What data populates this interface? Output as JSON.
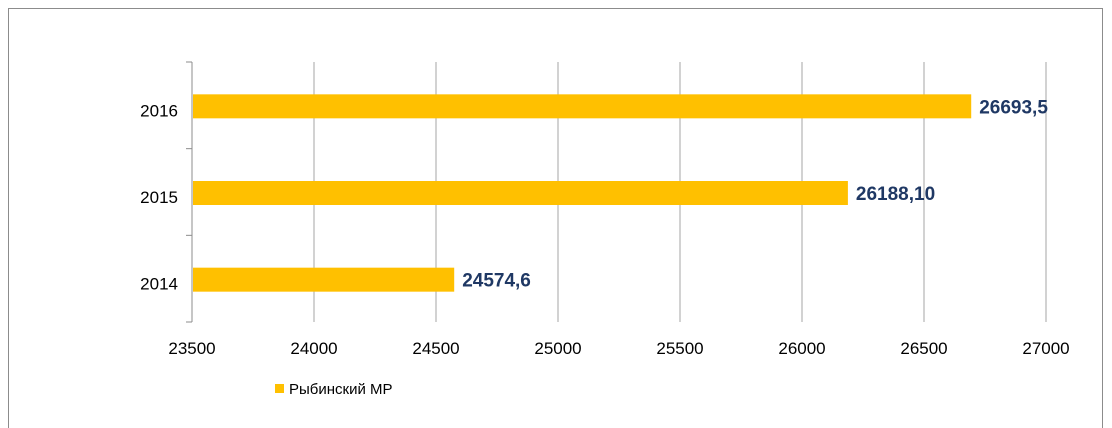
{
  "chart_data": {
    "type": "bar",
    "orientation": "horizontal",
    "categories": [
      "2014",
      "2015",
      "2016"
    ],
    "series": [
      {
        "name": "Рыбинский МР",
        "values": [
          24574.6,
          26188.1,
          26693.5
        ],
        "data_labels": [
          "24574,6",
          "26188,10",
          "26693,5"
        ],
        "color": "#ffc000"
      }
    ],
    "xlim": [
      23500,
      27000
    ],
    "x_ticks": [
      "23500",
      "24000",
      "24500",
      "25000",
      "25500",
      "26000",
      "26500",
      "27000"
    ],
    "grid": "vertical",
    "legend": "bottom-left",
    "label_color": "#1f3864",
    "grid_color": "#a6a6a6"
  }
}
